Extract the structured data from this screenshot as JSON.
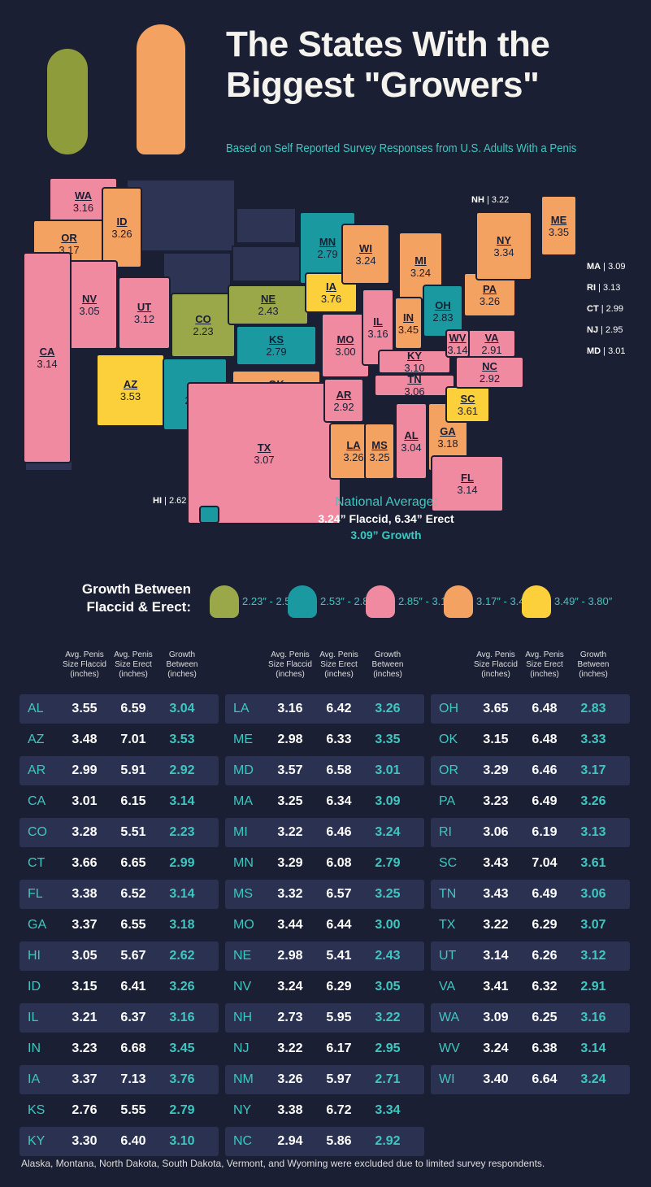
{
  "title": "The States With the Biggest \"Growers\"",
  "subtitle": "Based on Self Reported Survey Responses from U.S. Adults With a Penis",
  "colors": {
    "background": "#1b1f33",
    "accent": "#3ec7c0",
    "row": "#2b3150",
    "excluded": "#2e3454",
    "bucket_1": "#9aa84a",
    "bucket_2": "#1a9aa0",
    "bucket_3": "#f08aa0",
    "bucket_4": "#f4a261",
    "bucket_5": "#fcd03a"
  },
  "map": {
    "states": [
      {
        "abbr": "WA",
        "value": "3.16"
      },
      {
        "abbr": "OR",
        "value": "3.17"
      },
      {
        "abbr": "ID",
        "value": "3.26"
      },
      {
        "abbr": "NV",
        "value": "3.05"
      },
      {
        "abbr": "CA",
        "value": "3.14"
      },
      {
        "abbr": "UT",
        "value": "3.12"
      },
      {
        "abbr": "AZ",
        "value": "3.53"
      },
      {
        "abbr": "CO",
        "value": "2.23"
      },
      {
        "abbr": "NM",
        "value": "2.71"
      },
      {
        "abbr": "NE",
        "value": "2.43"
      },
      {
        "abbr": "KS",
        "value": "2.79"
      },
      {
        "abbr": "OK",
        "value": "3.33"
      },
      {
        "abbr": "TX",
        "value": "3.07"
      },
      {
        "abbr": "MN",
        "value": "2.79"
      },
      {
        "abbr": "IA",
        "value": "3.76"
      },
      {
        "abbr": "MO",
        "value": "3.00"
      },
      {
        "abbr": "AR",
        "value": "2.92"
      },
      {
        "abbr": "LA",
        "value": "3.26"
      },
      {
        "abbr": "WI",
        "value": "3.24"
      },
      {
        "abbr": "IL",
        "value": "3.16"
      },
      {
        "abbr": "MS",
        "value": "3.25"
      },
      {
        "abbr": "MI",
        "value": "3.24"
      },
      {
        "abbr": "IN",
        "value": "3.45"
      },
      {
        "abbr": "KY",
        "value": "3.10"
      },
      {
        "abbr": "TN",
        "value": "3.06"
      },
      {
        "abbr": "AL",
        "value": "3.04"
      },
      {
        "abbr": "OH",
        "value": "2.83"
      },
      {
        "abbr": "GA",
        "value": "3.18"
      },
      {
        "abbr": "FL",
        "value": "3.14"
      },
      {
        "abbr": "SC",
        "value": "3.61"
      },
      {
        "abbr": "NC",
        "value": "2.92"
      },
      {
        "abbr": "VA",
        "value": "2.91"
      },
      {
        "abbr": "WV",
        "value": "3.14"
      },
      {
        "abbr": "PA",
        "value": "3.26"
      },
      {
        "abbr": "NY",
        "value": "3.34"
      },
      {
        "abbr": "ME",
        "value": "3.35"
      }
    ],
    "callouts": [
      {
        "abbr": "NH",
        "value": "3.22"
      },
      {
        "abbr": "MA",
        "value": "3.09"
      },
      {
        "abbr": "RI",
        "value": "3.13"
      },
      {
        "abbr": "CT",
        "value": "2.99"
      },
      {
        "abbr": "NJ",
        "value": "2.95"
      },
      {
        "abbr": "MD",
        "value": "3.01"
      },
      {
        "abbr": "HI",
        "value": "2.62"
      }
    ]
  },
  "national": {
    "label": "National Average:",
    "sizes": "3.24” Flaccid, 6.34” Erect",
    "growth": "3.09” Growth"
  },
  "legend": {
    "title": "Growth Between Flaccid & Erect:",
    "items": [
      {
        "icon": "pickle-icon",
        "range": "2.23″ - 2.52″",
        "color": "#9aa84a"
      },
      {
        "icon": "eggplant-icon",
        "range": "2.53″ - 2.84″",
        "color": "#1a9aa0"
      },
      {
        "icon": "chili-pepper-icon",
        "range": "2.85″ - 3.16″",
        "color": "#f08aa0"
      },
      {
        "icon": "corn-icon",
        "range": "3.17″ - 3.48″",
        "color": "#f4a261"
      },
      {
        "icon": "banana-icon",
        "range": "3.49″ - 3.80″",
        "color": "#fcd03a"
      }
    ]
  },
  "table": {
    "headers": [
      "Avg. Penis Size Flaccid (inches)",
      "Avg. Penis Size Erect (inches)",
      "Growth Between (inches)"
    ],
    "columns": [
      [
        [
          "AL",
          "3.55",
          "6.59",
          "3.04"
        ],
        [
          "AZ",
          "3.48",
          "7.01",
          "3.53"
        ],
        [
          "AR",
          "2.99",
          "5.91",
          "2.92"
        ],
        [
          "CA",
          "3.01",
          "6.15",
          "3.14"
        ],
        [
          "CO",
          "3.28",
          "5.51",
          "2.23"
        ],
        [
          "CT",
          "3.66",
          "6.65",
          "2.99"
        ],
        [
          "FL",
          "3.38",
          "6.52",
          "3.14"
        ],
        [
          "GA",
          "3.37",
          "6.55",
          "3.18"
        ],
        [
          "HI",
          "3.05",
          "5.67",
          "2.62"
        ],
        [
          "ID",
          "3.15",
          "6.41",
          "3.26"
        ],
        [
          "IL",
          "3.21",
          "6.37",
          "3.16"
        ],
        [
          "IN",
          "3.23",
          "6.68",
          "3.45"
        ],
        [
          "IA",
          "3.37",
          "7.13",
          "3.76"
        ],
        [
          "KS",
          "2.76",
          "5.55",
          "2.79"
        ],
        [
          "KY",
          "3.30",
          "6.40",
          "3.10"
        ]
      ],
      [
        [
          "LA",
          "3.16",
          "6.42",
          "3.26"
        ],
        [
          "ME",
          "2.98",
          "6.33",
          "3.35"
        ],
        [
          "MD",
          "3.57",
          "6.58",
          "3.01"
        ],
        [
          "MA",
          "3.25",
          "6.34",
          "3.09"
        ],
        [
          "MI",
          "3.22",
          "6.46",
          "3.24"
        ],
        [
          "MN",
          "3.29",
          "6.08",
          "2.79"
        ],
        [
          "MS",
          "3.32",
          "6.57",
          "3.25"
        ],
        [
          "MO",
          "3.44",
          "6.44",
          "3.00"
        ],
        [
          "NE",
          "2.98",
          "5.41",
          "2.43"
        ],
        [
          "NV",
          "3.24",
          "6.29",
          "3.05"
        ],
        [
          "NH",
          "2.73",
          "5.95",
          "3.22"
        ],
        [
          "NJ",
          "3.22",
          "6.17",
          "2.95"
        ],
        [
          "NM",
          "3.26",
          "5.97",
          "2.71"
        ],
        [
          "NY",
          "3.38",
          "6.72",
          "3.34"
        ],
        [
          "NC",
          "2.94",
          "5.86",
          "2.92"
        ]
      ],
      [
        [
          "OH",
          "3.65",
          "6.48",
          "2.83"
        ],
        [
          "OK",
          "3.15",
          "6.48",
          "3.33"
        ],
        [
          "OR",
          "3.29",
          "6.46",
          "3.17"
        ],
        [
          "PA",
          "3.23",
          "6.49",
          "3.26"
        ],
        [
          "RI",
          "3.06",
          "6.19",
          "3.13"
        ],
        [
          "SC",
          "3.43",
          "7.04",
          "3.61"
        ],
        [
          "TN",
          "3.43",
          "6.49",
          "3.06"
        ],
        [
          "TX",
          "3.22",
          "6.29",
          "3.07"
        ],
        [
          "UT",
          "3.14",
          "6.26",
          "3.12"
        ],
        [
          "VA",
          "3.41",
          "6.32",
          "2.91"
        ],
        [
          "WA",
          "3.09",
          "6.25",
          "3.16"
        ],
        [
          "WV",
          "3.24",
          "6.38",
          "3.14"
        ],
        [
          "WI",
          "3.40",
          "6.64",
          "3.24"
        ]
      ]
    ]
  },
  "footnote": "Alaska, Montana, North Dakota, South Dakota, Vermont, and Wyoming were excluded due to limited survey respondents."
}
